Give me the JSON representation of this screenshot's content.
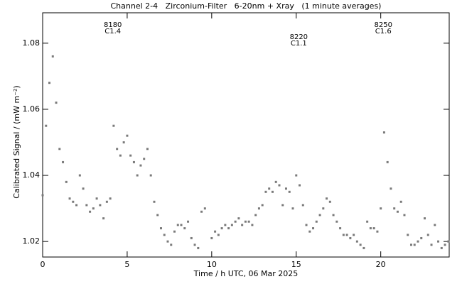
{
  "chart_data": {
    "type": "scatter",
    "title": "Channel 2-4   Zirconium-Filter   6-20nm + Xray   (1 minute averages)",
    "x_label": "Time / h UTC, 06 Mar 2025",
    "y_label": "Calibrated Signal / (mW m⁻²)",
    "color": "#7a7a7a",
    "xlim": [
      0,
      24.05
    ],
    "xticks": [
      0,
      5,
      10,
      15,
      20
    ],
    "ylim": [
      1.0153,
      1.0892
    ],
    "yticks": [
      1.02,
      1.04,
      1.06,
      1.08
    ],
    "annotations": [
      {
        "lines": [
          "8180",
          "C1.4"
        ],
        "x": 4.15
      },
      {
        "lines": [
          "8220",
          "C1.1"
        ],
        "x": 15.15
      },
      {
        "lines": [
          "8250",
          "C1.6"
        ],
        "x": 20.15
      }
    ],
    "x": [
      0,
      0.2,
      0.4,
      0.6,
      0.8,
      1,
      1.2,
      1.4,
      1.6,
      1.8,
      2,
      2.2,
      2.4,
      2.6,
      2.8,
      3,
      3.2,
      3.4,
      3.6,
      3.8,
      4,
      4.2,
      4.4,
      4.6,
      4.8,
      5,
      5.2,
      5.4,
      5.6,
      5.8,
      6,
      6.2,
      6.4,
      6.6,
      6.8,
      7,
      7.2,
      7.4,
      7.6,
      7.8,
      8,
      8.2,
      8.4,
      8.6,
      8.8,
      9,
      9.2,
      9.4,
      9.6,
      9.8,
      10,
      10.2,
      10.4,
      10.6,
      10.8,
      11,
      11.2,
      11.4,
      11.6,
      11.8,
      12,
      12.2,
      12.4,
      12.6,
      12.8,
      13,
      13.2,
      13.4,
      13.6,
      13.8,
      14,
      14.2,
      14.4,
      14.6,
      14.8,
      15,
      15.2,
      15.4,
      15.6,
      15.8,
      16,
      16.2,
      16.4,
      16.6,
      16.8,
      17,
      17.2,
      17.4,
      17.6,
      17.8,
      18,
      18.2,
      18.4,
      18.6,
      18.8,
      19,
      19.2,
      19.4,
      19.6,
      19.8,
      20,
      20.2,
      20.4,
      20.6,
      20.8,
      21,
      21.2,
      21.4,
      21.6,
      21.8,
      22,
      22.2,
      22.4,
      22.6,
      22.8,
      23,
      23.2,
      23.4,
      23.6,
      23.8,
      24
    ],
    "values": [
      1.034,
      1.055,
      1.068,
      1.076,
      1.062,
      1.048,
      1.044,
      1.038,
      1.033,
      1.032,
      1.031,
      1.04,
      1.036,
      1.031,
      1.029,
      1.03,
      1.033,
      1.031,
      1.027,
      1.032,
      1.033,
      1.055,
      1.048,
      1.046,
      1.05,
      1.052,
      1.046,
      1.044,
      1.04,
      1.043,
      1.045,
      1.048,
      1.04,
      1.032,
      1.028,
      1.024,
      1.022,
      1.02,
      1.019,
      1.023,
      1.025,
      1.025,
      1.024,
      1.026,
      1.021,
      1.019,
      1.018,
      1.029,
      1.03,
      null,
      1.021,
      1.023,
      1.022,
      1.024,
      1.025,
      1.024,
      1.025,
      1.026,
      1.027,
      1.025,
      1.026,
      1.026,
      1.025,
      1.028,
      1.03,
      1.031,
      1.035,
      1.036,
      1.035,
      1.038,
      1.037,
      1.031,
      1.036,
      1.035,
      1.03,
      1.04,
      1.037,
      1.031,
      1.025,
      1.023,
      1.024,
      1.026,
      1.028,
      1.03,
      1.033,
      1.032,
      1.028,
      1.026,
      1.024,
      1.022,
      1.022,
      1.021,
      1.022,
      1.02,
      1.019,
      1.018,
      1.026,
      1.024,
      1.024,
      1.023,
      1.03,
      1.053,
      1.044,
      1.036,
      1.03,
      1.029,
      1.032,
      1.028,
      1.022,
      1.019,
      1.019,
      1.02,
      1.021,
      1.027,
      1.022,
      1.019,
      1.025,
      1.02,
      1.018,
      1.019,
      1.02
    ]
  }
}
